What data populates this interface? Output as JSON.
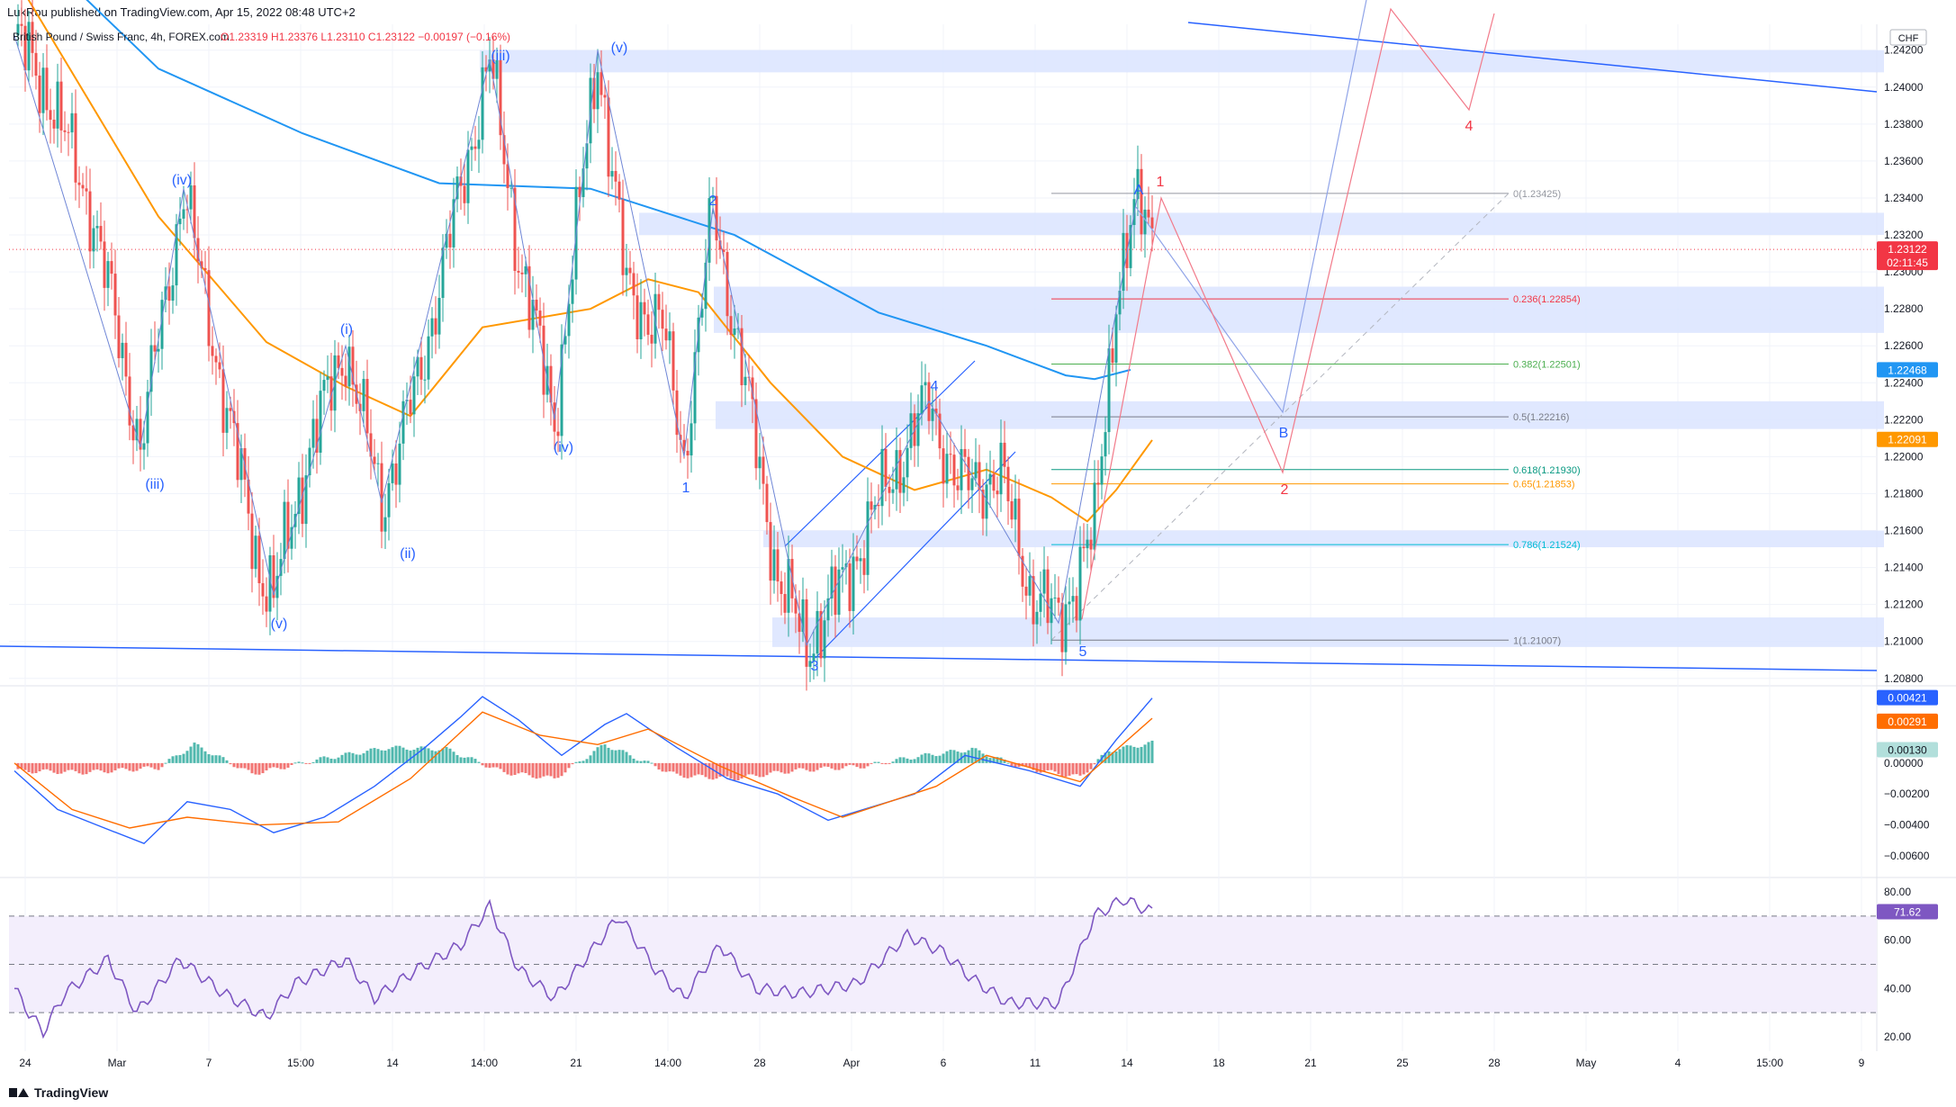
{
  "header": {
    "publisher": "LukRou published on TradingView.com, Apr 15, 2022 08:48 UTC+2",
    "symbol": "British Pound / Swiss Franc, 4h, FOREX.com",
    "ohlc": {
      "o": "O1.23319",
      "h": "H1.23376",
      "l": "L1.23110",
      "c": "C1.23122",
      "chg": "−0.00197 (−0.16%)"
    },
    "currency": "CHF"
  },
  "footer": {
    "brand": "TradingView"
  },
  "colors": {
    "ma200": "#2196f3",
    "ma50": "#ff9800",
    "wave_blue": "#2962ff",
    "wave_red": "#f23645",
    "zone_fill": "#dbe4ff",
    "macd": "#2962ff",
    "signal": "#ff6d00",
    "hist_pos": "#26a69a",
    "hist_neg": "#ef5350",
    "rsi": "#7e57c2",
    "rsi_band": "#f3eefc"
  },
  "chart_data": [
    {
      "type": "candlestick",
      "name": "GBPCHF 4h",
      "y_ticks": [
        "1.24200",
        "1.24000",
        "1.23800",
        "1.23600",
        "1.23400",
        "1.23200",
        "1.23000",
        "1.22800",
        "1.22600",
        "1.22400",
        "1.22200",
        "1.22000",
        "1.21800",
        "1.21600",
        "1.21400",
        "1.21200",
        "1.21000",
        "1.20800"
      ],
      "ylim": [
        1.2076,
        1.2434
      ],
      "x_ticks": [
        "24",
        "Mar",
        "7",
        "15:00",
        "14",
        "14:00",
        "21",
        "14:00",
        "28",
        "Apr",
        "6",
        "11",
        "14",
        "18",
        "21",
        "25",
        "28",
        "May",
        "4",
        "15:00",
        "9"
      ],
      "price_badges": [
        {
          "value": "1.23122",
          "sub": "02:11:45",
          "color": "#f23645"
        },
        {
          "value": "1.22468",
          "color": "#2196f3"
        },
        {
          "value": "1.22091",
          "color": "#ff9800"
        }
      ],
      "anchors": [
        {
          "x": 0,
          "y": 1.2428
        },
        {
          "x": 10,
          "y": 1.2395
        },
        {
          "x": 22,
          "y": 1.233
        },
        {
          "x": 35,
          "y": 1.2205
        },
        {
          "x": 47,
          "y": 1.2345
        },
        {
          "x": 60,
          "y": 1.2215
        },
        {
          "x": 68,
          "y": 1.214
        },
        {
          "x": 72,
          "y": 1.2125
        },
        {
          "x": 82,
          "y": 1.2205
        },
        {
          "x": 92,
          "y": 1.226
        },
        {
          "x": 102,
          "y": 1.2175
        },
        {
          "x": 112,
          "y": 1.224
        },
        {
          "x": 124,
          "y": 1.2345
        },
        {
          "x": 132,
          "y": 1.2415
        },
        {
          "x": 140,
          "y": 1.231
        },
        {
          "x": 150,
          "y": 1.222
        },
        {
          "x": 162,
          "y": 1.242
        },
        {
          "x": 170,
          "y": 1.229
        },
        {
          "x": 180,
          "y": 1.227
        },
        {
          "x": 186,
          "y": 1.22
        },
        {
          "x": 194,
          "y": 1.2335
        },
        {
          "x": 202,
          "y": 1.225
        },
        {
          "x": 212,
          "y": 1.2135
        },
        {
          "x": 220,
          "y": 1.2098
        },
        {
          "x": 230,
          "y": 1.213
        },
        {
          "x": 240,
          "y": 1.2175
        },
        {
          "x": 254,
          "y": 1.223
        },
        {
          "x": 262,
          "y": 1.2185
        },
        {
          "x": 274,
          "y": 1.219
        },
        {
          "x": 282,
          "y": 1.2128
        },
        {
          "x": 290,
          "y": 1.211
        },
        {
          "x": 300,
          "y": 1.216
        },
        {
          "x": 306,
          "y": 1.229
        },
        {
          "x": 312,
          "y": 1.2335
        },
        {
          "x": 316,
          "y": 1.2325
        }
      ],
      "moving_averages": [
        {
          "name": "MA long",
          "anchors": [
            {
              "x": 0,
              "y": 1.2485
            },
            {
              "x": 40,
              "y": 1.241
            },
            {
              "x": 80,
              "y": 1.2375
            },
            {
              "x": 118,
              "y": 1.2348
            },
            {
              "x": 160,
              "y": 1.2345
            },
            {
              "x": 200,
              "y": 1.232
            },
            {
              "x": 240,
              "y": 1.2278
            },
            {
              "x": 270,
              "y": 1.226
            },
            {
              "x": 292,
              "y": 1.2244
            },
            {
              "x": 300,
              "y": 1.2242
            },
            {
              "x": 310,
              "y": 1.2247
            }
          ]
        },
        {
          "name": "MA short",
          "anchors": [
            {
              "x": 0,
              "y": 1.246
            },
            {
              "x": 40,
              "y": 1.233
            },
            {
              "x": 70,
              "y": 1.2262
            },
            {
              "x": 92,
              "y": 1.2238
            },
            {
              "x": 110,
              "y": 1.2222
            },
            {
              "x": 130,
              "y": 1.227
            },
            {
              "x": 160,
              "y": 1.228
            },
            {
              "x": 176,
              "y": 1.2296
            },
            {
              "x": 190,
              "y": 1.2289
            },
            {
              "x": 210,
              "y": 1.224
            },
            {
              "x": 230,
              "y": 1.22
            },
            {
              "x": 250,
              "y": 1.2182
            },
            {
              "x": 270,
              "y": 1.2193
            },
            {
              "x": 288,
              "y": 1.2178
            },
            {
              "x": 298,
              "y": 1.2165
            },
            {
              "x": 306,
              "y": 1.2182
            },
            {
              "x": 316,
              "y": 1.2209
            }
          ]
        }
      ],
      "zones": [
        [
          1.2408,
          1.242
        ],
        [
          1.232,
          1.2332
        ],
        [
          1.2267,
          1.2292
        ],
        [
          1.2215,
          1.223
        ],
        [
          1.2151,
          1.216
        ],
        [
          1.2097,
          1.2113
        ]
      ],
      "fib_levels": [
        {
          "label": "0(1.23425)",
          "value": 1.23425,
          "color": "#9598a1"
        },
        {
          "label": "0.236(1.22854)",
          "value": 1.22854,
          "color": "#f23645"
        },
        {
          "label": "0.382(1.22501)",
          "value": 1.22501,
          "color": "#4caf50"
        },
        {
          "label": "0.5(1.22216)",
          "value": 1.22216,
          "color": "#787b86"
        },
        {
          "label": "0.618(1.21930)",
          "value": 1.2193,
          "color": "#089981"
        },
        {
          "label": "0.65(1.21853)",
          "value": 1.21853,
          "color": "#ff9800"
        },
        {
          "label": "0.786(1.21524)",
          "value": 1.21524,
          "color": "#00bcd4"
        },
        {
          "label": "1(1.21007)",
          "value": 1.21007,
          "color": "#787b86"
        }
      ],
      "wave_labels": [
        {
          "text": "(iii)",
          "color": "#2962ff"
        },
        {
          "text": "(v)",
          "color": "#2962ff"
        },
        {
          "text": "(iv)",
          "color": "#2962ff"
        },
        {
          "text": "(iii)",
          "color": "#2962ff"
        },
        {
          "text": "(i)",
          "color": "#2962ff"
        },
        {
          "text": "(ii)",
          "color": "#2962ff"
        },
        {
          "text": "(v)",
          "color": "#2962ff"
        },
        {
          "text": "(iv)",
          "color": "#2962ff"
        },
        {
          "text": "2",
          "color": "#2962ff"
        },
        {
          "text": "1",
          "color": "#2962ff"
        },
        {
          "text": "3",
          "color": "#2962ff"
        },
        {
          "text": "4",
          "color": "#2962ff"
        },
        {
          "text": "5",
          "color": "#2962ff"
        },
        {
          "text": "A",
          "color": "#2962ff"
        },
        {
          "text": "B",
          "color": "#2962ff"
        },
        {
          "text": "1",
          "color": "#f23645"
        },
        {
          "text": "2",
          "color": "#f23645"
        },
        {
          "text": "4",
          "color": "#f23645"
        }
      ]
    },
    {
      "type": "line",
      "name": "MACD",
      "y_ticks": [
        "0.00000",
        "−0.00200",
        "−0.00400",
        "−0.00600"
      ],
      "ylim": [
        -0.0074,
        0.005
      ],
      "badges": [
        {
          "value": "0.00421",
          "color": "#2962ff"
        },
        {
          "value": "0.00291",
          "color": "#ff6d00"
        },
        {
          "value": "0.00130",
          "color": "#b2dfdb"
        }
      ],
      "macd": [
        {
          "x": 0,
          "y": -0.0005
        },
        {
          "x": 12,
          "y": -0.003
        },
        {
          "x": 25,
          "y": -0.0042
        },
        {
          "x": 36,
          "y": -0.0052
        },
        {
          "x": 48,
          "y": -0.0025
        },
        {
          "x": 60,
          "y": -0.003
        },
        {
          "x": 72,
          "y": -0.0045
        },
        {
          "x": 86,
          "y": -0.0035
        },
        {
          "x": 100,
          "y": -0.0015
        },
        {
          "x": 114,
          "y": 0.001
        },
        {
          "x": 124,
          "y": 0.003
        },
        {
          "x": 130,
          "y": 0.0043
        },
        {
          "x": 140,
          "y": 0.0028
        },
        {
          "x": 152,
          "y": 0.0005
        },
        {
          "x": 164,
          "y": 0.0025
        },
        {
          "x": 170,
          "y": 0.0032
        },
        {
          "x": 184,
          "y": 0.001
        },
        {
          "x": 198,
          "y": -0.001
        },
        {
          "x": 212,
          "y": -0.002
        },
        {
          "x": 226,
          "y": -0.0037
        },
        {
          "x": 250,
          "y": -0.002
        },
        {
          "x": 264,
          "y": 0.0005
        },
        {
          "x": 282,
          "y": -0.0005
        },
        {
          "x": 296,
          "y": -0.0015
        },
        {
          "x": 306,
          "y": 0.0015
        },
        {
          "x": 316,
          "y": 0.0042
        }
      ],
      "signal": [
        {
          "x": 0,
          "y": 0.0
        },
        {
          "x": 16,
          "y": -0.003
        },
        {
          "x": 32,
          "y": -0.0042
        },
        {
          "x": 48,
          "y": -0.0035
        },
        {
          "x": 68,
          "y": -0.004
        },
        {
          "x": 90,
          "y": -0.0038
        },
        {
          "x": 110,
          "y": -0.001
        },
        {
          "x": 130,
          "y": 0.0033
        },
        {
          "x": 146,
          "y": 0.0018
        },
        {
          "x": 162,
          "y": 0.0012
        },
        {
          "x": 176,
          "y": 0.0022
        },
        {
          "x": 196,
          "y": -0.0002
        },
        {
          "x": 216,
          "y": -0.0022
        },
        {
          "x": 230,
          "y": -0.0035
        },
        {
          "x": 256,
          "y": -0.0015
        },
        {
          "x": 270,
          "y": 0.0005
        },
        {
          "x": 296,
          "y": -0.0012
        },
        {
          "x": 316,
          "y": 0.0029
        }
      ],
      "histogram": [
        {
          "x": 0,
          "y": -0.0005
        },
        {
          "x": 20,
          "y": -0.0006
        },
        {
          "x": 40,
          "y": -0.0003
        },
        {
          "x": 50,
          "y": 0.0012
        },
        {
          "x": 66,
          "y": -0.0007
        },
        {
          "x": 86,
          "y": 0.0003
        },
        {
          "x": 104,
          "y": 0.001
        },
        {
          "x": 120,
          "y": 0.0009
        },
        {
          "x": 136,
          "y": -0.0006
        },
        {
          "x": 150,
          "y": -0.001
        },
        {
          "x": 164,
          "y": 0.0012
        },
        {
          "x": 184,
          "y": -0.0008
        },
        {
          "x": 200,
          "y": -0.001
        },
        {
          "x": 216,
          "y": -0.0005
        },
        {
          "x": 236,
          "y": -0.0002
        },
        {
          "x": 250,
          "y": 0.0004
        },
        {
          "x": 266,
          "y": 0.0009
        },
        {
          "x": 280,
          "y": -0.0003
        },
        {
          "x": 296,
          "y": -0.0009
        },
        {
          "x": 304,
          "y": 0.0008
        },
        {
          "x": 316,
          "y": 0.0013
        }
      ]
    },
    {
      "type": "line",
      "name": "RSI",
      "y_ticks": [
        "80.00",
        "60.00",
        "40.00",
        "20.00"
      ],
      "ylim": [
        14,
        86
      ],
      "bands": [
        70,
        50,
        30
      ],
      "badge": {
        "value": "71.62",
        "color": "#7e57c2"
      },
      "values": [
        {
          "x": 0,
          "y": 40
        },
        {
          "x": 4,
          "y": 30
        },
        {
          "x": 8,
          "y": 22
        },
        {
          "x": 14,
          "y": 38
        },
        {
          "x": 26,
          "y": 52
        },
        {
          "x": 34,
          "y": 30
        },
        {
          "x": 46,
          "y": 52
        },
        {
          "x": 58,
          "y": 38
        },
        {
          "x": 70,
          "y": 28
        },
        {
          "x": 78,
          "y": 42
        },
        {
          "x": 92,
          "y": 52
        },
        {
          "x": 100,
          "y": 36
        },
        {
          "x": 112,
          "y": 48
        },
        {
          "x": 124,
          "y": 58
        },
        {
          "x": 132,
          "y": 74
        },
        {
          "x": 140,
          "y": 48
        },
        {
          "x": 150,
          "y": 36
        },
        {
          "x": 160,
          "y": 55
        },
        {
          "x": 168,
          "y": 70
        },
        {
          "x": 178,
          "y": 48
        },
        {
          "x": 186,
          "y": 36
        },
        {
          "x": 196,
          "y": 58
        },
        {
          "x": 206,
          "y": 40
        },
        {
          "x": 218,
          "y": 38
        },
        {
          "x": 234,
          "y": 42
        },
        {
          "x": 248,
          "y": 62
        },
        {
          "x": 258,
          "y": 55
        },
        {
          "x": 266,
          "y": 44
        },
        {
          "x": 276,
          "y": 34
        },
        {
          "x": 290,
          "y": 34
        },
        {
          "x": 300,
          "y": 70
        },
        {
          "x": 308,
          "y": 77
        },
        {
          "x": 316,
          "y": 71.62
        }
      ]
    }
  ]
}
